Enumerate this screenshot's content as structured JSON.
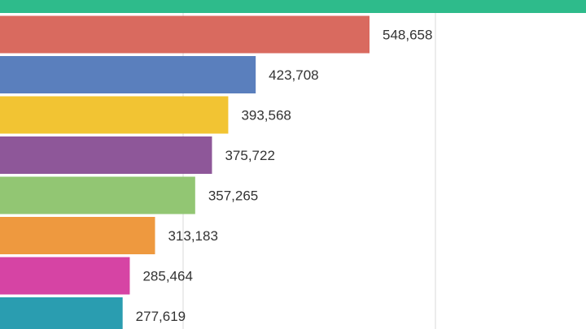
{
  "chart_data": {
    "type": "bar",
    "orientation": "horizontal",
    "title": "",
    "xlabel": "",
    "ylabel": "",
    "grid": true,
    "legend": "none",
    "series": [
      {
        "value": null,
        "label": "",
        "color": "#2ebb8b"
      },
      {
        "value": 548658,
        "label": "548,658",
        "color": "#d96a5f"
      },
      {
        "value": 423708,
        "label": "423,708",
        "color": "#5a7fbd"
      },
      {
        "value": 393568,
        "label": "393,568",
        "color": "#f2c433"
      },
      {
        "value": 375722,
        "label": "375,722",
        "color": "#8e5799"
      },
      {
        "value": 357265,
        "label": "357,265",
        "color": "#92c673"
      },
      {
        "value": 313183,
        "label": "313,183",
        "color": "#ee993f"
      },
      {
        "value": 285464,
        "label": "285,464",
        "color": "#d644a4"
      },
      {
        "value": 277619,
        "label": "277,619",
        "color": "#2a9db0"
      }
    ]
  }
}
